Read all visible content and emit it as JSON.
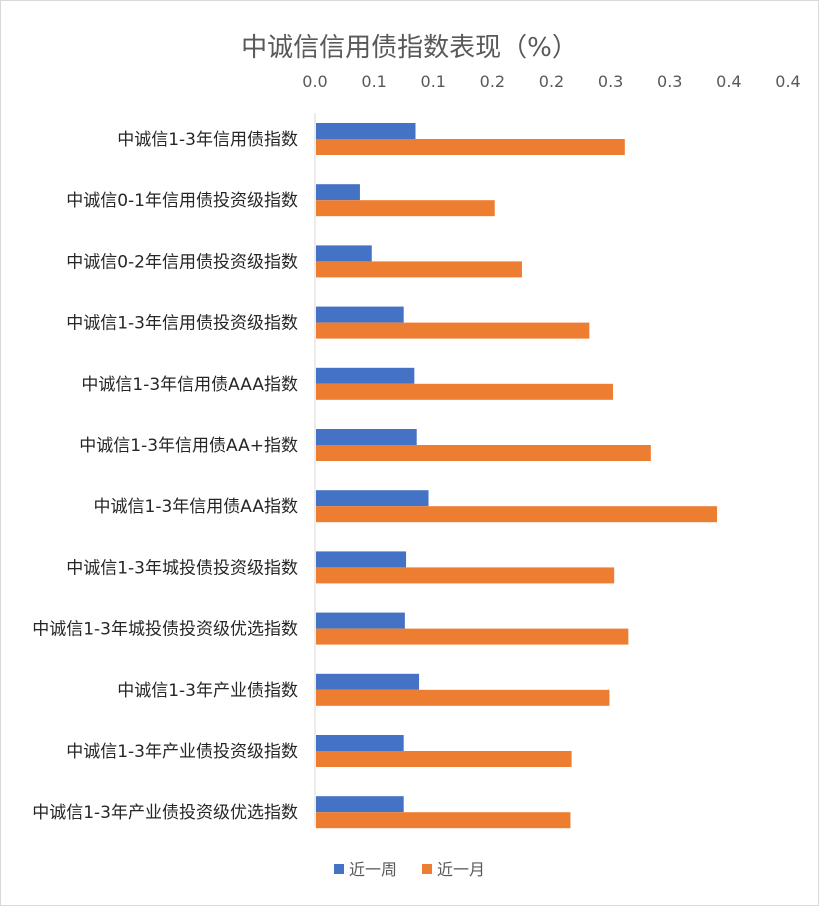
{
  "chart_data": {
    "type": "bar",
    "orientation": "horizontal",
    "title": "中诚信信用债指数表现（%）",
    "xlabel": "",
    "ylabel": "",
    "xlim": [
      0,
      0.4
    ],
    "x_ticks": [
      0,
      0.05,
      0.1,
      0.15,
      0.2,
      0.25,
      0.3,
      0.35,
      0.4
    ],
    "x_tick_labels": [
      "0.0",
      "0.1",
      "0.1",
      "0.2",
      "0.2",
      "0.3",
      "0.3",
      "0.4",
      "0.4"
    ],
    "axis_position": "top",
    "grid": false,
    "legend_position": "bottom",
    "categories": [
      "中诚信1-3年信用债指数",
      "中诚信0-1年信用债投资级指数",
      "中诚信0-2年信用债投资级指数",
      "中诚信1-3年信用债投资级指数",
      "中诚信1-3年信用债AAA指数",
      "中诚信1-3年信用债AA+指数",
      "中诚信1-3年信用债AA指数",
      "中诚信1-3年城投债投资级指数",
      "中诚信1-3年城投债投资级优选指数",
      "中诚信1-3年产业债指数",
      "中诚信1-3年产业债投资级指数",
      "中诚信1-3年产业债投资级优选指数"
    ],
    "series": [
      {
        "name": "近一周",
        "color": "#4472c4",
        "values": [
          0.085,
          0.038,
          0.048,
          0.075,
          0.084,
          0.086,
          0.096,
          0.077,
          0.076,
          0.088,
          0.075,
          0.075
        ]
      },
      {
        "name": "近一月",
        "color": "#ed7d31",
        "values": [
          0.262,
          0.152,
          0.175,
          0.232,
          0.252,
          0.284,
          0.34,
          0.253,
          0.265,
          0.249,
          0.217,
          0.216
        ]
      }
    ]
  }
}
